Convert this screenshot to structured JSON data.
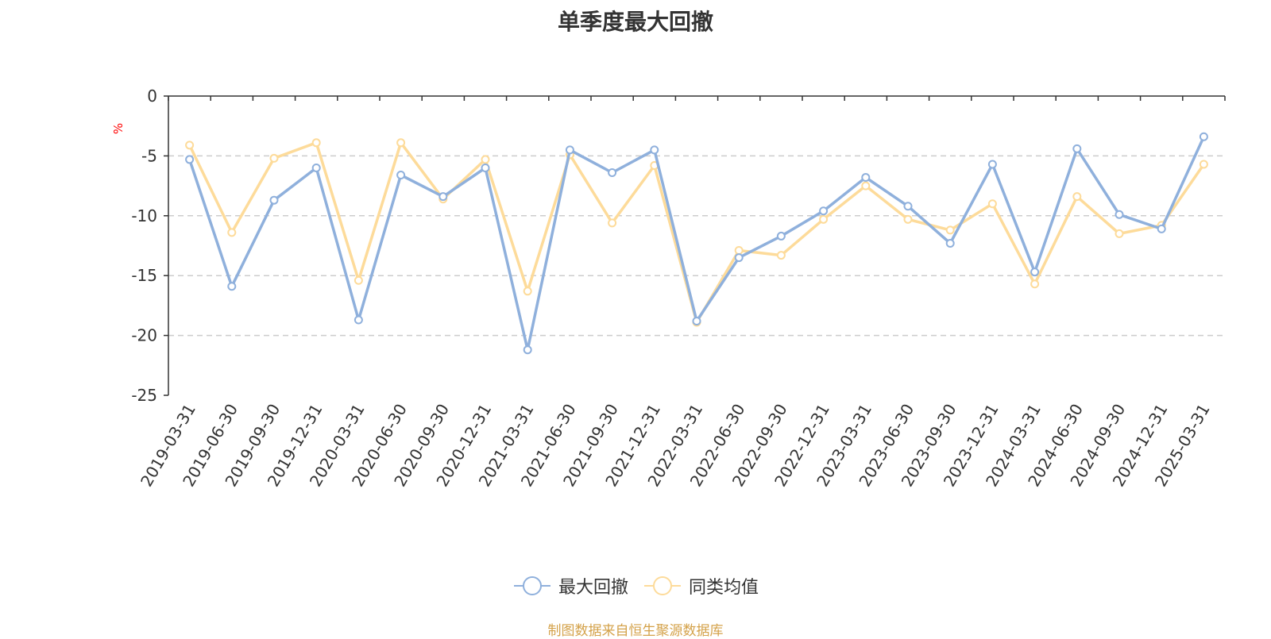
{
  "chart_data": {
    "type": "line",
    "title": "单季度最大回撤",
    "ylabel": "%",
    "ylim": [
      -25,
      0
    ],
    "yticks": [
      0,
      -5,
      -10,
      -15,
      -20,
      -25
    ],
    "grid": true,
    "legend_position": "bottom",
    "categories": [
      "2019-03-31",
      "2019-06-30",
      "2019-09-30",
      "2019-12-31",
      "2020-03-31",
      "2020-06-30",
      "2020-09-30",
      "2020-12-31",
      "2021-03-31",
      "2021-06-30",
      "2021-09-30",
      "2021-12-31",
      "2022-03-31",
      "2022-06-30",
      "2022-09-30",
      "2022-12-31",
      "2023-03-31",
      "2023-06-30",
      "2023-09-30",
      "2023-12-31",
      "2024-03-31",
      "2024-06-30",
      "2024-09-30",
      "2024-12-31",
      "2025-03-31"
    ],
    "series": [
      {
        "name": "最大回撤",
        "color": "#8fb0dc",
        "values": [
          -5.3,
          -15.9,
          -8.7,
          -6.0,
          -18.7,
          -6.6,
          -8.4,
          -6.0,
          -21.2,
          -4.5,
          -6.4,
          -4.5,
          -18.8,
          -13.5,
          -11.7,
          -9.6,
          -6.8,
          -9.2,
          -12.3,
          -5.7,
          -14.7,
          -4.4,
          -9.9,
          -11.1,
          -3.4
        ]
      },
      {
        "name": "同类均值",
        "color": "#fddb9a",
        "values": [
          -4.1,
          -11.4,
          -5.2,
          -3.9,
          -15.4,
          -3.9,
          -8.6,
          -5.3,
          -16.3,
          -4.9,
          -10.6,
          -5.8,
          -18.9,
          -12.9,
          -13.3,
          -10.3,
          -7.5,
          -10.3,
          -11.2,
          -9.0,
          -15.7,
          -8.4,
          -11.5,
          -10.8,
          -5.7
        ]
      }
    ],
    "source_note": "制图数据来自恒生聚源数据库"
  }
}
